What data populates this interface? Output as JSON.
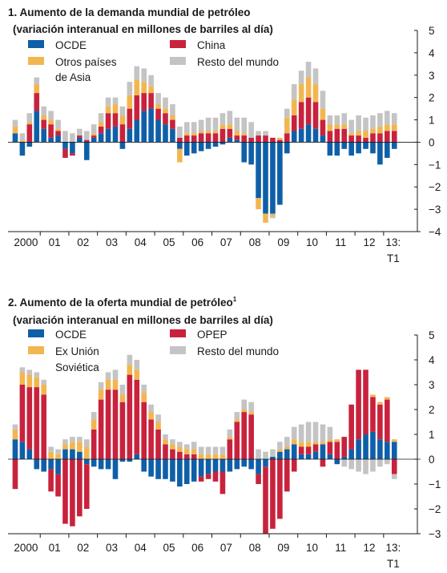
{
  "colors": {
    "OCDE": "#0f5fa8",
    "China": "#c8223d",
    "OPEP": "#c8223d",
    "Otros países de Asia": "#f2b650",
    "Ex Unión Soviética": "#f2b650",
    "Resto del mundo": "#c4c4c4"
  },
  "chart_data": [
    {
      "type": "bar",
      "stacked": true,
      "title": "1. Aumento de la demanda mundial de petróleo",
      "subtitle": "(variación interanual en millones de barriles al día)",
      "ylim": [
        -4,
        5
      ],
      "yticks": [
        5,
        4,
        3,
        2,
        1,
        0,
        -1,
        -2,
        -3,
        -4
      ],
      "xlabels": [
        "2000",
        "01",
        "02",
        "03",
        "04",
        "05",
        "06",
        "07",
        "08",
        "09",
        "10",
        "11",
        "12",
        "13:"
      ],
      "xlabel_extra": "T1",
      "periods_per_year": 4,
      "legend_labels": [
        [
          "OCDE"
        ],
        [
          "China"
        ],
        [
          "Otros países",
          "de Asia"
        ],
        [
          "Resto del mundo"
        ]
      ],
      "legend_keys": [
        "OCDE",
        "China",
        "Otros países de Asia",
        "Resto del mundo"
      ],
      "series": [
        {
          "name": "OCDE",
          "values": [
            0.4,
            -0.6,
            -0.2,
            1.4,
            0.6,
            0.2,
            0.3,
            -0.3,
            -0.5,
            0.2,
            -0.8,
            0.2,
            0.4,
            0.6,
            0.7,
            -0.3,
            0.6,
            1.0,
            1.4,
            1.5,
            1.0,
            0.8,
            0.6,
            -0.3,
            -0.6,
            -0.5,
            -0.4,
            -0.3,
            -0.2,
            -0.1,
            0.2,
            0.1,
            -0.9,
            -1.0,
            -2.5,
            -3.2,
            -3.2,
            -2.8,
            -0.5,
            0.5,
            0.6,
            0.8,
            0.6,
            0.3,
            -0.6,
            -0.6,
            -0.3,
            -0.6,
            -0.5,
            -0.3,
            -0.5,
            -1.0,
            -0.7,
            -0.3
          ]
        },
        {
          "name": "China",
          "values": [
            0.0,
            0.0,
            0.8,
            0.8,
            0.4,
            0.6,
            0.2,
            -0.4,
            -0.1,
            0.1,
            0.1,
            0.1,
            0.3,
            0.7,
            0.6,
            0.8,
            0.9,
            1.1,
            0.8,
            0.7,
            0.5,
            0.5,
            0.4,
            0.2,
            0.3,
            0.3,
            0.4,
            0.4,
            0.4,
            0.6,
            0.4,
            0.2,
            0.3,
            0.2,
            0.3,
            0.3,
            0.2,
            0.1,
            0.4,
            0.7,
            1.2,
            1.2,
            1.2,
            0.7,
            0.5,
            0.6,
            0.6,
            0.3,
            0.3,
            0.2,
            0.4,
            0.4,
            0.5,
            0.5
          ]
        },
        {
          "name": "Otros países de Asia",
          "values": [
            0.3,
            0.1,
            0.1,
            0.4,
            0.2,
            0.2,
            0.1,
            0.0,
            0.0,
            0.0,
            0.0,
            0.1,
            0.2,
            0.3,
            0.4,
            0.4,
            0.6,
            0.7,
            0.5,
            0.3,
            0.2,
            0.2,
            0.2,
            -0.6,
            0.1,
            0.1,
            0.1,
            0.1,
            0.1,
            0.2,
            0.2,
            0.2,
            0.1,
            0.0,
            -0.5,
            -0.4,
            -0.1,
            0.1,
            0.7,
            0.7,
            0.8,
            0.9,
            0.8,
            0.5,
            0.3,
            0.2,
            0.2,
            0.1,
            0.2,
            0.3,
            0.2,
            0.3,
            0.3,
            0.3
          ]
        },
        {
          "name": "Resto del mundo",
          "values": [
            0.3,
            0.3,
            0.4,
            0.3,
            0.4,
            0.4,
            0.4,
            0.5,
            0.4,
            0.3,
            0.4,
            0.4,
            0.4,
            0.4,
            0.3,
            0.4,
            0.6,
            0.6,
            0.6,
            0.5,
            0.5,
            0.5,
            0.5,
            0.5,
            0.5,
            0.5,
            0.5,
            0.6,
            0.6,
            0.5,
            0.6,
            0.6,
            0.7,
            0.7,
            0.2,
            0.2,
            -0.1,
            0.0,
            0.4,
            0.7,
            0.6,
            0.7,
            0.7,
            0.8,
            0.4,
            0.4,
            0.5,
            0.6,
            0.7,
            0.6,
            0.6,
            0.6,
            0.6,
            0.5
          ]
        }
      ]
    },
    {
      "type": "bar",
      "stacked": true,
      "title": "2. Aumento de la oferta mundial de petróleo",
      "title_sup": "1",
      "subtitle": "(variación interanual en millones de barriles al día)",
      "ylim": [
        -3,
        5
      ],
      "yticks": [
        5,
        4,
        3,
        2,
        1,
        0,
        -1,
        -2,
        -3
      ],
      "xlabels": [
        "2000",
        "01",
        "02",
        "03",
        "04",
        "05",
        "06",
        "07",
        "08",
        "09",
        "10",
        "11",
        "12",
        "13:"
      ],
      "xlabel_extra": "T1",
      "periods_per_year": 4,
      "legend_labels": [
        [
          "OCDE"
        ],
        [
          "OPEP"
        ],
        [
          "Ex Unión",
          "Soviética"
        ],
        [
          "Resto del mundo"
        ]
      ],
      "legend_keys": [
        "OCDE",
        "OPEP",
        "Ex Unión Soviética",
        "Resto del mundo"
      ],
      "series": [
        {
          "name": "OCDE",
          "values": [
            0.8,
            0.7,
            0.4,
            -0.4,
            -0.5,
            -0.4,
            -0.6,
            0.4,
            0.4,
            0.3,
            -0.2,
            -0.3,
            -0.4,
            -0.4,
            -0.8,
            -0.1,
            -0.1,
            0.2,
            -0.5,
            -0.7,
            -0.8,
            -0.8,
            -0.9,
            -1.1,
            -1.0,
            -0.9,
            -0.7,
            -0.6,
            -0.5,
            -0.5,
            -0.5,
            -0.4,
            -0.3,
            -0.4,
            -0.6,
            -0.3,
            0.1,
            0.3,
            0.4,
            0.6,
            0.2,
            0.2,
            0.3,
            0.6,
            0.2,
            -0.2,
            0.1,
            0.4,
            0.8,
            1.0,
            1.1,
            0.8,
            0.7,
            0.7
          ]
        },
        {
          "name": "OPEP",
          "values": [
            -1.2,
            2.3,
            2.5,
            2.9,
            2.6,
            -0.9,
            -0.9,
            -2.6,
            -2.7,
            -2.3,
            -1.8,
            1.2,
            2.4,
            2.8,
            2.8,
            2.3,
            3.4,
            3.0,
            2.3,
            1.6,
            1.2,
            0.6,
            0.4,
            0.3,
            0.2,
            0.2,
            -0.2,
            -0.2,
            -0.4,
            -0.9,
            0.8,
            1.5,
            1.9,
            1.8,
            -0.4,
            -2.7,
            -2.8,
            -2.4,
            -1.3,
            -0.5,
            0.3,
            0.3,
            0.3,
            -0.3,
            0.5,
            0.7,
            0.8,
            1.8,
            2.8,
            2.6,
            1.4,
            1.4,
            1.7,
            -0.6
          ]
        },
        {
          "name": "Ex Unión Soviética",
          "values": [
            0.4,
            0.5,
            0.5,
            0.4,
            0.4,
            0.3,
            0.2,
            0.2,
            0.3,
            0.4,
            0.5,
            0.4,
            0.4,
            0.4,
            0.4,
            0.3,
            0.4,
            0.4,
            0.4,
            0.3,
            0.3,
            0.2,
            0.2,
            0.2,
            0.2,
            0.2,
            0.2,
            0.2,
            0.2,
            0.2,
            0.1,
            0.1,
            0.1,
            0.1,
            0.0,
            0.0,
            0.0,
            0.1,
            0.1,
            0.2,
            0.2,
            0.2,
            0.1,
            0.1,
            0.1,
            0.1,
            0.0,
            0.0,
            0.0,
            0.0,
            0.1,
            0.1,
            0.1,
            0.1
          ]
        },
        {
          "name": "Resto del mundo",
          "values": [
            0.2,
            0.2,
            0.2,
            0.2,
            0.2,
            0.2,
            0.2,
            0.2,
            0.2,
            0.2,
            0.3,
            0.3,
            0.3,
            0.3,
            0.4,
            0.4,
            0.4,
            0.4,
            0.3,
            0.3,
            0.3,
            0.2,
            0.2,
            0.2,
            0.2,
            0.3,
            0.3,
            0.3,
            0.3,
            0.3,
            0.3,
            0.3,
            0.4,
            0.4,
            0.4,
            0.3,
            0.3,
            0.3,
            0.4,
            0.5,
            0.7,
            0.8,
            0.8,
            0.7,
            0.5,
            0.0,
            -0.3,
            -0.4,
            -0.5,
            -0.6,
            -0.5,
            -0.3,
            -0.2,
            -0.2
          ]
        }
      ]
    }
  ]
}
